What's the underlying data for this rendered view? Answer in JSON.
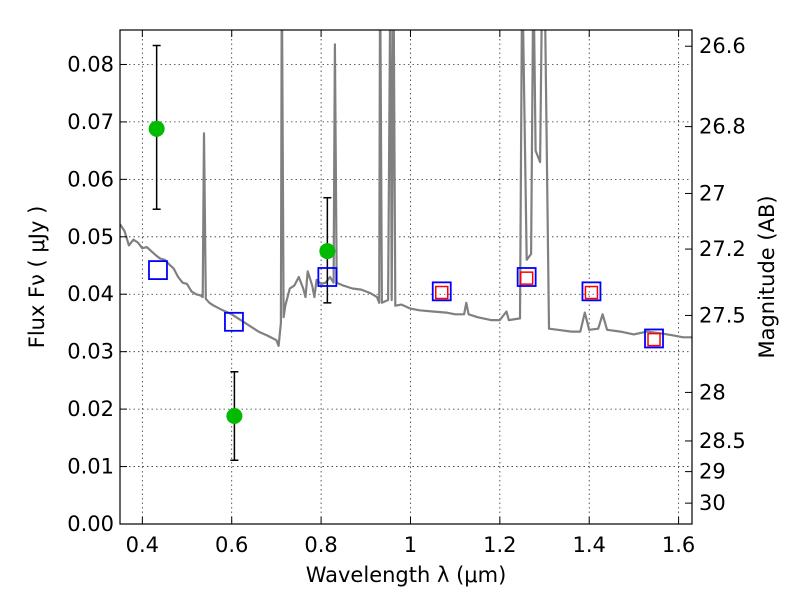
{
  "chart_data": {
    "type": "scatter",
    "xlabel": "Wavelength  λ (μm)",
    "ylabel_left": "Flux  Fν  ( μJy )",
    "ylabel_right": "Magnitude (AB)",
    "xlim": [
      0.35,
      1.63
    ],
    "ylim": [
      0.0,
      0.086
    ],
    "grid": true,
    "x_ticks": [
      {
        "v": 0.4,
        "label": "0.4"
      },
      {
        "v": 0.6,
        "label": "0.6"
      },
      {
        "v": 0.8,
        "label": "0.8"
      },
      {
        "v": 1.0,
        "label": "1"
      },
      {
        "v": 1.2,
        "label": "1.2"
      },
      {
        "v": 1.4,
        "label": "1.4"
      },
      {
        "v": 1.6,
        "label": "1.6"
      }
    ],
    "y_ticks": [
      {
        "v": 0.0,
        "label": "0.00"
      },
      {
        "v": 0.01,
        "label": "0.01"
      },
      {
        "v": 0.02,
        "label": "0.02"
      },
      {
        "v": 0.03,
        "label": "0.03"
      },
      {
        "v": 0.04,
        "label": "0.04"
      },
      {
        "v": 0.05,
        "label": "0.05"
      },
      {
        "v": 0.06,
        "label": "0.06"
      },
      {
        "v": 0.07,
        "label": "0.07"
      },
      {
        "v": 0.08,
        "label": "0.08"
      }
    ],
    "right_ticks": [
      {
        "mag": 26.6,
        "label": "26.6"
      },
      {
        "mag": 26.8,
        "label": "26.8"
      },
      {
        "mag": 27.0,
        "label": "27"
      },
      {
        "mag": 27.2,
        "label": "27.2"
      },
      {
        "mag": 27.5,
        "label": "27.5"
      },
      {
        "mag": 28.0,
        "label": "28"
      },
      {
        "mag": 28.5,
        "label": "28.5"
      },
      {
        "mag": 29.0,
        "label": "29"
      },
      {
        "mag": 30.0,
        "label": "30"
      }
    ],
    "series": [
      {
        "kind": "line",
        "color": "#808080",
        "points": [
          [
            0.35,
            0.0522
          ],
          [
            0.36,
            0.051
          ],
          [
            0.37,
            0.0485
          ],
          [
            0.38,
            0.0495
          ],
          [
            0.39,
            0.049
          ],
          [
            0.4,
            0.048
          ],
          [
            0.41,
            0.0482
          ],
          [
            0.42,
            0.0475
          ],
          [
            0.43,
            0.0468
          ],
          [
            0.44,
            0.0462
          ],
          [
            0.45,
            0.046
          ],
          [
            0.46,
            0.0452
          ],
          [
            0.47,
            0.0445
          ],
          [
            0.48,
            0.043
          ],
          [
            0.49,
            0.042
          ],
          [
            0.5,
            0.0418
          ],
          [
            0.51,
            0.0405
          ],
          [
            0.52,
            0.04
          ],
          [
            0.53,
            0.0398
          ],
          [
            0.535,
            0.0395
          ],
          [
            0.538,
            0.068
          ],
          [
            0.542,
            0.0392
          ],
          [
            0.55,
            0.0385
          ],
          [
            0.56,
            0.038
          ],
          [
            0.58,
            0.0372
          ],
          [
            0.6,
            0.0365
          ],
          [
            0.62,
            0.0355
          ],
          [
            0.64,
            0.0345
          ],
          [
            0.66,
            0.0335
          ],
          [
            0.68,
            0.0328
          ],
          [
            0.7,
            0.032
          ],
          [
            0.705,
            0.031
          ],
          [
            0.71,
            0.035
          ],
          [
            0.712,
            0.097
          ],
          [
            0.716,
            0.036
          ],
          [
            0.72,
            0.038
          ],
          [
            0.73,
            0.041
          ],
          [
            0.74,
            0.0415
          ],
          [
            0.75,
            0.043
          ],
          [
            0.76,
            0.041
          ],
          [
            0.765,
            0.0395
          ],
          [
            0.77,
            0.044
          ],
          [
            0.78,
            0.0415
          ],
          [
            0.785,
            0.0395
          ],
          [
            0.79,
            0.0425
          ],
          [
            0.8,
            0.0418
          ],
          [
            0.81,
            0.042
          ],
          [
            0.82,
            0.043
          ],
          [
            0.828,
            0.042
          ],
          [
            0.831,
            0.0835
          ],
          [
            0.835,
            0.042
          ],
          [
            0.85,
            0.0415
          ],
          [
            0.87,
            0.041
          ],
          [
            0.89,
            0.0408
          ],
          [
            0.91,
            0.0402
          ],
          [
            0.925,
            0.0395
          ],
          [
            0.93,
            0.0385
          ],
          [
            0.932,
            0.097
          ],
          [
            0.936,
            0.0385
          ],
          [
            0.95,
            0.039
          ],
          [
            0.955,
            0.097
          ],
          [
            0.958,
            0.039
          ],
          [
            0.962,
            0.097
          ],
          [
            0.966,
            0.038
          ],
          [
            0.98,
            0.0382
          ],
          [
            1.0,
            0.0375
          ],
          [
            1.02,
            0.0372
          ],
          [
            1.05,
            0.037
          ],
          [
            1.08,
            0.0368
          ],
          [
            1.1,
            0.0365
          ],
          [
            1.12,
            0.0365
          ],
          [
            1.125,
            0.0385
          ],
          [
            1.13,
            0.0365
          ],
          [
            1.15,
            0.036
          ],
          [
            1.18,
            0.0355
          ],
          [
            1.2,
            0.0355
          ],
          [
            1.215,
            0.037
          ],
          [
            1.22,
            0.0355
          ],
          [
            1.245,
            0.0358
          ],
          [
            1.25,
            0.097
          ],
          [
            1.26,
            0.046
          ],
          [
            1.27,
            0.047
          ],
          [
            1.275,
            0.097
          ],
          [
            1.28,
            0.065
          ],
          [
            1.29,
            0.063
          ],
          [
            1.295,
            0.097
          ],
          [
            1.3,
            0.097
          ],
          [
            1.31,
            0.034
          ],
          [
            1.33,
            0.0338
          ],
          [
            1.36,
            0.0335
          ],
          [
            1.38,
            0.0335
          ],
          [
            1.39,
            0.0368
          ],
          [
            1.4,
            0.0338
          ],
          [
            1.42,
            0.034
          ],
          [
            1.43,
            0.0365
          ],
          [
            1.44,
            0.0338
          ],
          [
            1.47,
            0.0335
          ],
          [
            1.5,
            0.033
          ],
          [
            1.53,
            0.0335
          ],
          [
            1.56,
            0.0332
          ],
          [
            1.59,
            0.0328
          ],
          [
            1.61,
            0.0325
          ],
          [
            1.63,
            0.0325
          ]
        ]
      },
      {
        "kind": "errorbar",
        "color": "#00bb00",
        "points": [
          {
            "x": 0.432,
            "y": 0.0688,
            "ylo": 0.0548,
            "yhi": 0.0833
          },
          {
            "x": 0.606,
            "y": 0.0188,
            "ylo": 0.0111,
            "yhi": 0.0265
          },
          {
            "x": 0.814,
            "y": 0.0475,
            "ylo": 0.0385,
            "yhi": 0.0568
          }
        ]
      },
      {
        "kind": "square",
        "color": "#0000ff",
        "points": [
          [
            0.435,
            0.0442
          ],
          [
            0.605,
            0.0352
          ],
          [
            0.814,
            0.043
          ],
          [
            1.07,
            0.0405
          ],
          [
            1.26,
            0.043
          ],
          [
            1.405,
            0.0405
          ],
          [
            1.545,
            0.0323
          ]
        ]
      },
      {
        "kind": "square-small",
        "color": "#ff0000",
        "points": [
          [
            1.07,
            0.0403
          ],
          [
            1.26,
            0.0428
          ],
          [
            1.405,
            0.0403
          ],
          [
            1.545,
            0.0321
          ]
        ]
      }
    ]
  }
}
